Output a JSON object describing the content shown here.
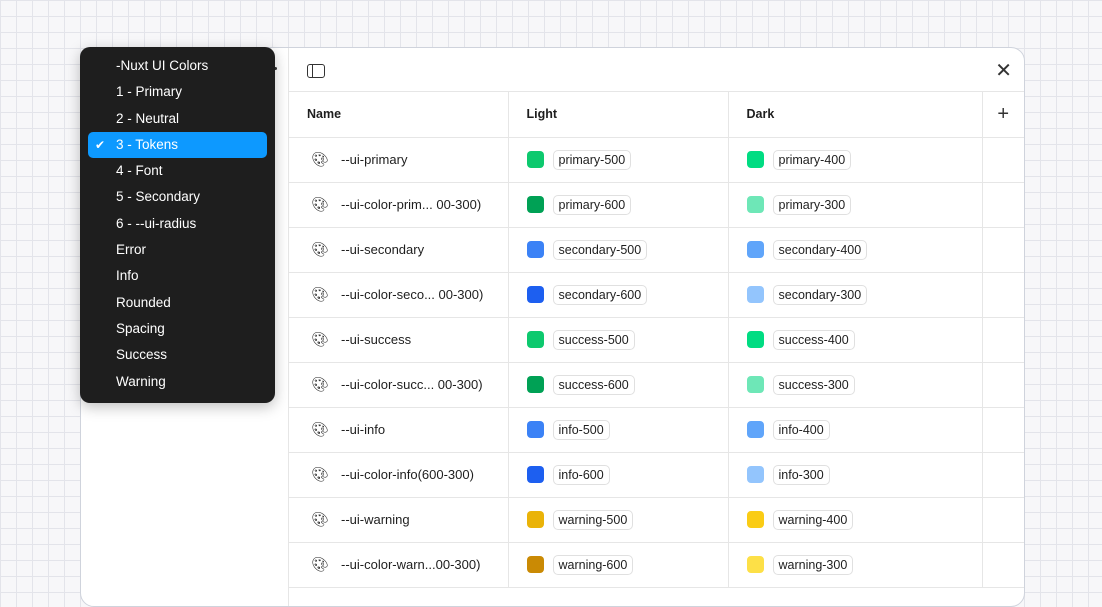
{
  "menu": {
    "items": [
      {
        "label": "-Nuxt UI Colors",
        "selected": false
      },
      {
        "label": "1 - Primary",
        "selected": false
      },
      {
        "label": "2 - Neutral",
        "selected": false
      },
      {
        "label": "3 - Tokens",
        "selected": true
      },
      {
        "label": "4 - Font",
        "selected": false
      },
      {
        "label": "5 - Secondary",
        "selected": false
      },
      {
        "label": "6 - --ui-radius",
        "selected": false
      },
      {
        "label": "Error",
        "selected": false
      },
      {
        "label": "Info",
        "selected": false
      },
      {
        "label": "Rounded",
        "selected": false
      },
      {
        "label": "Spacing",
        "selected": false
      },
      {
        "label": "Success",
        "selected": false
      },
      {
        "label": "Warning",
        "selected": false
      }
    ],
    "check": "✔"
  },
  "toolbar": {
    "close": "✕"
  },
  "table": {
    "headers": [
      "Name",
      "Light",
      "Dark"
    ],
    "add": "+",
    "rows": [
      {
        "name": "--ui-primary",
        "light": "primary-500",
        "light_color": "#0dc96e",
        "dark": "primary-400",
        "dark_color": "#00dc82"
      },
      {
        "name": "--ui-color-prim... 00-300)",
        "light": "primary-600",
        "light_color": "#00a155",
        "dark": "primary-300",
        "dark_color": "#6ee7b7"
      },
      {
        "name": "--ui-secondary",
        "light": "secondary-500",
        "light_color": "#3b82f6",
        "dark": "secondary-400",
        "dark_color": "#60a5fa"
      },
      {
        "name": "--ui-color-seco... 00-300)",
        "light": "secondary-600",
        "light_color": "#1d5ff0",
        "dark": "secondary-300",
        "dark_color": "#93c5fd"
      },
      {
        "name": "--ui-success",
        "light": "success-500",
        "light_color": "#0dc96e",
        "dark": "success-400",
        "dark_color": "#00dc82"
      },
      {
        "name": "--ui-color-succ... 00-300)",
        "light": "success-600",
        "light_color": "#00a155",
        "dark": "success-300",
        "dark_color": "#6ee7b7"
      },
      {
        "name": "--ui-info",
        "light": "info-500",
        "light_color": "#3b82f6",
        "dark": "info-400",
        "dark_color": "#60a5fa"
      },
      {
        "name": "--ui-color-info(600-300)",
        "light": "info-600",
        "light_color": "#1d5ff0",
        "dark": "info-300",
        "dark_color": "#93c5fd"
      },
      {
        "name": "--ui-warning",
        "light": "warning-500",
        "light_color": "#eab308",
        "dark": "warning-400",
        "dark_color": "#facc15"
      },
      {
        "name": "--ui-color-warn...00-300)",
        "light": "warning-600",
        "light_color": "#ca8a04",
        "dark": "warning-300",
        "dark_color": "#fde047"
      }
    ]
  }
}
